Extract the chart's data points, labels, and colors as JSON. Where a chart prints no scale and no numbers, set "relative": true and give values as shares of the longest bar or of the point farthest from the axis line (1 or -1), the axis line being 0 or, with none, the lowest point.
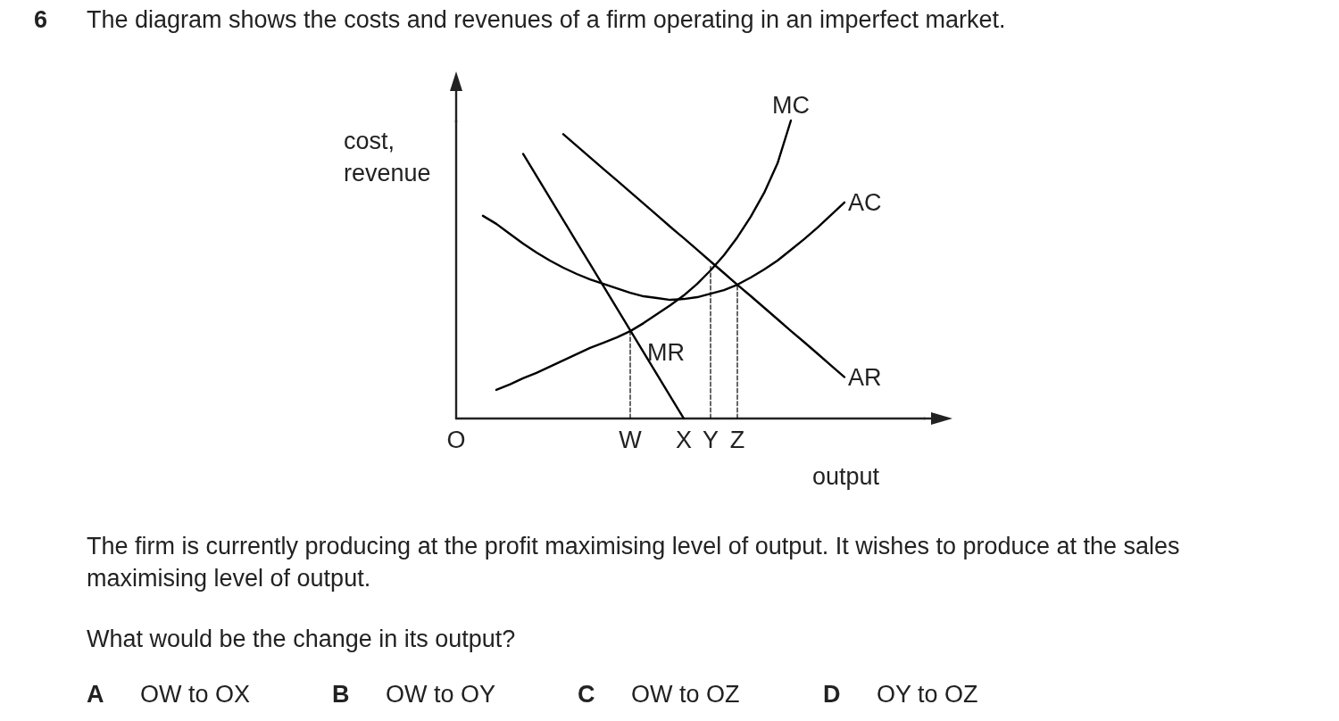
{
  "chart_data": {
    "type": "line",
    "relative": true,
    "title": "6 The diagram shows the costs and revenues of a firm operating in an imperfect market.",
    "xlabel": "output",
    "ylabel": "cost,\nrevenue",
    "categories": [
      "O",
      null,
      null,
      null,
      null,
      null,
      null,
      null,
      null,
      null,
      null,
      null,
      null,
      "W",
      null,
      null,
      null,
      "X",
      null,
      "Y",
      null,
      "Z",
      null,
      null,
      null,
      null,
      null,
      null,
      null,
      null,
      null,
      null,
      null,
      null,
      null,
      null
    ],
    "series": [
      {
        "name": "MC",
        "color": "#000000",
        "values": [
          null,
          null,
          null,
          0.096,
          0.114,
          0.135,
          0.153,
          0.174,
          0.195,
          0.216,
          0.237,
          0.254,
          0.272,
          0.293,
          0.32,
          0.35,
          0.38,
          0.413,
          0.452,
          0.497,
          0.548,
          0.608,
          0.677,
          0.757,
          0.856,
          1,
          null,
          null,
          null,
          null,
          null,
          null,
          null,
          null,
          null,
          null
        ]
      },
      {
        "name": "AC",
        "color": "#000000",
        "values": [
          null,
          null,
          0.68,
          0.653,
          0.62,
          0.587,
          0.557,
          0.53,
          0.506,
          0.485,
          0.467,
          0.452,
          0.437,
          0.422,
          0.41,
          0.404,
          0.398,
          0.401,
          0.407,
          0.419,
          0.431,
          0.449,
          0.473,
          0.5,
          0.53,
          0.566,
          0.602,
          0.641,
          0.683,
          0.725,
          null,
          null,
          null,
          null,
          null,
          null
        ]
      },
      {
        "name": "AR",
        "color": "#000000",
        "values": [
          null,
          null,
          null,
          null,
          null,
          null,
          null,
          null,
          0.954,
          0.915,
          0.876,
          0.837,
          0.799,
          0.76,
          0.721,
          0.682,
          0.643,
          0.605,
          0.566,
          0.527,
          0.488,
          0.449,
          0.411,
          0.372,
          0.333,
          0.294,
          0.256,
          0.217,
          0.178,
          0.139,
          null,
          null,
          null,
          null,
          null,
          null
        ]
      },
      {
        "name": "MR",
        "color": "#000000",
        "values": [
          null,
          null,
          null,
          null,
          null,
          0.888,
          0.814,
          0.74,
          0.666,
          0.592,
          0.518,
          0.444,
          0.37,
          0.296,
          0.222,
          0.148,
          0.074,
          0,
          null,
          null,
          null,
          null,
          null,
          null,
          null,
          null,
          null,
          null,
          null,
          null,
          null,
          null,
          null,
          null,
          null,
          null
        ]
      },
      {
        "color": "#000000",
        "x": [
          "W",
          "W"
        ],
        "values": [
          0,
          0.293
        ],
        "line_style": "dashed"
      },
      {
        "color": "#000000",
        "x": [
          "Y",
          "Y"
        ],
        "values": [
          0,
          0.51
        ],
        "line_style": "dashed"
      },
      {
        "color": "#000000",
        "x": [
          "Z",
          "Z"
        ],
        "values": [
          0,
          0.449
        ],
        "line_style": "dashed"
      }
    ],
    "annotations": [
      "The firm is currently producing at the profit maximising level of output. It wishes to produce at the sales maximising level of output.",
      "What would be the change in its output?",
      "A OW to OX",
      "B OW to OY",
      "C OW to OZ",
      "D OY to OZ"
    ],
    "grid": false,
    "legend": false,
    "marker": "none",
    "line_style": "solid"
  }
}
